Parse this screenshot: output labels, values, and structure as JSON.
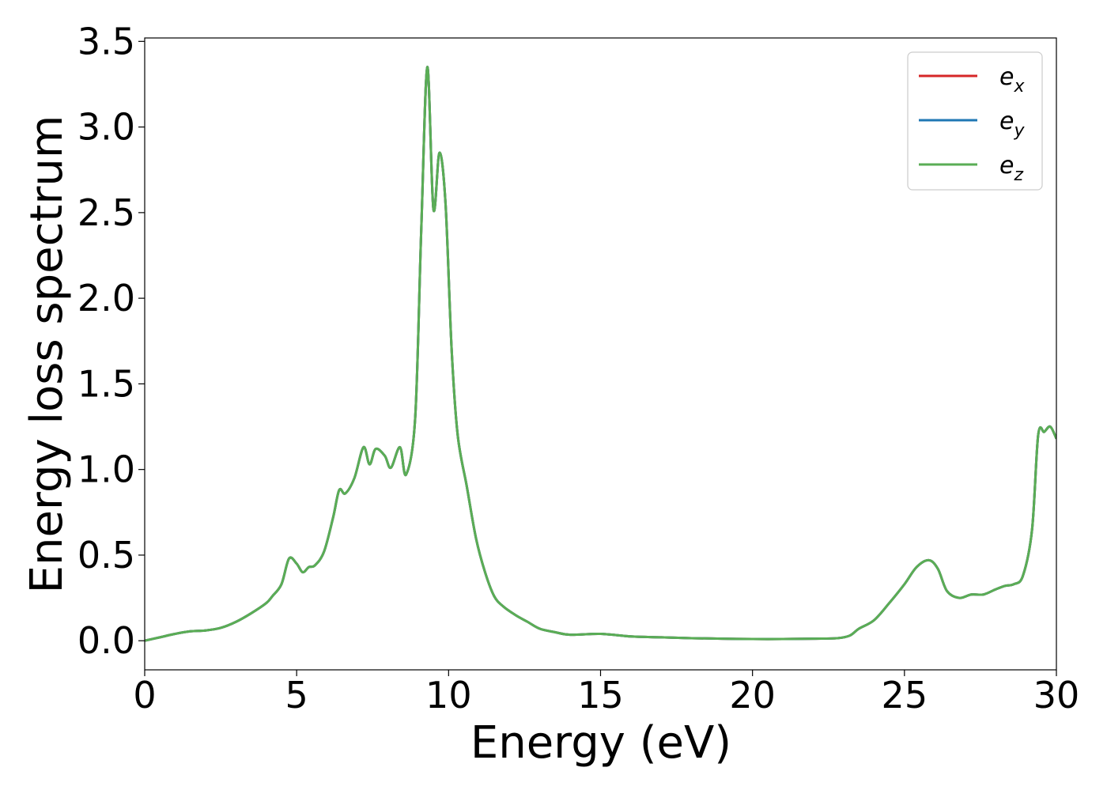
{
  "chart_data": {
    "type": "line",
    "xlabel": "Energy (eV)",
    "ylabel": "Energy loss spectrum",
    "xlim": [
      0,
      30
    ],
    "ylim": [
      -0.17,
      3.52
    ],
    "xticks": [
      0,
      5,
      10,
      15,
      20,
      25,
      30
    ],
    "yticks": [
      0.0,
      0.5,
      1.0,
      1.5,
      2.0,
      2.5,
      3.0,
      3.5
    ],
    "grid": false,
    "legend_position": "top-right",
    "series": [
      {
        "name": "e",
        "subscript": "x",
        "color": "#d62728"
      },
      {
        "name": "e",
        "subscript": "y",
        "color": "#1f77b4"
      },
      {
        "name": "e",
        "subscript": "z",
        "color": "#5aad55"
      }
    ],
    "x": [
      0,
      0.5,
      1.0,
      1.5,
      2.0,
      2.5,
      3.0,
      3.5,
      4.0,
      4.2,
      4.5,
      4.75,
      5.0,
      5.2,
      5.4,
      5.6,
      5.9,
      6.2,
      6.4,
      6.6,
      6.9,
      7.2,
      7.4,
      7.6,
      7.9,
      8.1,
      8.4,
      8.6,
      8.9,
      9.1,
      9.3,
      9.5,
      9.7,
      9.9,
      10.1,
      10.3,
      10.6,
      10.9,
      11.2,
      11.5,
      11.8,
      12.2,
      12.6,
      13.0,
      13.5,
      14.0,
      15.0,
      16.0,
      17.0,
      18.0,
      19.0,
      20.0,
      21.0,
      22.0,
      22.8,
      23.2,
      23.5,
      24.0,
      24.5,
      25.0,
      25.4,
      25.8,
      26.1,
      26.4,
      26.8,
      27.2,
      27.6,
      28.0,
      28.3,
      28.6,
      28.9,
      29.2,
      29.4,
      29.6,
      29.8,
      30.0
    ],
    "y": [
      0.0,
      0.02,
      0.04,
      0.055,
      0.06,
      0.075,
      0.11,
      0.16,
      0.22,
      0.26,
      0.33,
      0.48,
      0.45,
      0.4,
      0.43,
      0.44,
      0.52,
      0.72,
      0.88,
      0.86,
      0.95,
      1.13,
      1.03,
      1.12,
      1.08,
      1.01,
      1.13,
      0.97,
      1.3,
      2.4,
      3.35,
      2.52,
      2.85,
      2.55,
      1.7,
      1.2,
      0.9,
      0.6,
      0.4,
      0.26,
      0.2,
      0.15,
      0.11,
      0.07,
      0.05,
      0.035,
      0.04,
      0.025,
      0.02,
      0.015,
      0.012,
      0.01,
      0.01,
      0.012,
      0.015,
      0.03,
      0.07,
      0.12,
      0.22,
      0.33,
      0.43,
      0.47,
      0.42,
      0.29,
      0.25,
      0.27,
      0.27,
      0.3,
      0.32,
      0.33,
      0.38,
      0.65,
      1.2,
      1.22,
      1.25,
      1.18
    ]
  }
}
